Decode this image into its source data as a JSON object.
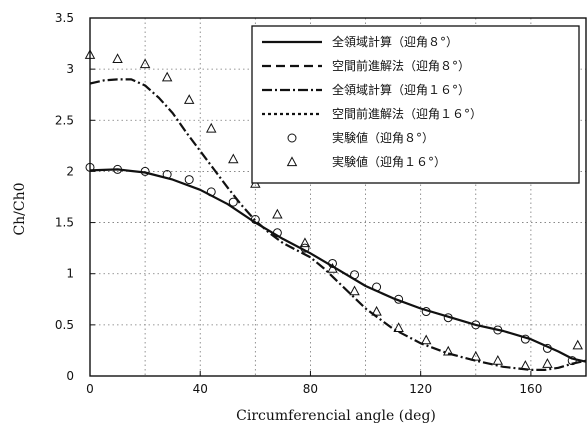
{
  "chart_data": {
    "type": "line",
    "xlabel": "Circumferencial angle (deg)",
    "ylabel": "Ch/Ch0",
    "xlim": [
      0,
      180
    ],
    "ylim": [
      0,
      3.5
    ],
    "xticks": [
      "0",
      "40",
      "80",
      "120",
      "160"
    ],
    "xtick_values": [
      0,
      40,
      80,
      120,
      160
    ],
    "yticks": [
      "0",
      "0.5",
      "1",
      "1.5",
      "2",
      "2.5",
      "3",
      "3.5"
    ],
    "ytick_values": [
      0,
      0.5,
      1,
      1.5,
      2,
      2.5,
      3,
      3.5
    ],
    "grid": true,
    "legend_position": "top-right",
    "series": [
      {
        "name": "全領域計算（迎角８°）",
        "style": "solid",
        "x": [
          0,
          10,
          20,
          30,
          40,
          50,
          60,
          70,
          80,
          90,
          100,
          110,
          120,
          130,
          140,
          150,
          160,
          170,
          175,
          180
        ],
        "y": [
          2.01,
          2.02,
          1.99,
          1.92,
          1.82,
          1.68,
          1.5,
          1.34,
          1.2,
          1.04,
          0.88,
          0.76,
          0.66,
          0.58,
          0.5,
          0.44,
          0.36,
          0.24,
          0.17,
          0.14
        ]
      },
      {
        "name": "空間前進解法（迎角８°）",
        "style": "dashed",
        "x": [],
        "y": []
      },
      {
        "name": "全領域計算（迎角１６°）",
        "style": "dashdot",
        "x": [
          0,
          5,
          10,
          15,
          20,
          25,
          30,
          35,
          40,
          45,
          50,
          55,
          60,
          65,
          70,
          75,
          80,
          85,
          90,
          95,
          100,
          110,
          120,
          130,
          140,
          150,
          160,
          165,
          170,
          175,
          180
        ],
        "y": [
          2.86,
          2.89,
          2.9,
          2.9,
          2.84,
          2.72,
          2.57,
          2.38,
          2.2,
          2.02,
          1.84,
          1.67,
          1.52,
          1.4,
          1.3,
          1.23,
          1.16,
          1.05,
          0.92,
          0.79,
          0.66,
          0.46,
          0.32,
          0.22,
          0.15,
          0.09,
          0.06,
          0.06,
          0.08,
          0.12,
          0.15
        ]
      },
      {
        "name": "空間前進解法（迎角１６°）",
        "style": "dotted",
        "x": [],
        "y": []
      },
      {
        "name": "実験値（迎角８°）",
        "style": "circle",
        "x": [
          0,
          10,
          20,
          28,
          36,
          44,
          52,
          60,
          68,
          78,
          88,
          96,
          104,
          112,
          122,
          130,
          140,
          148,
          158,
          166,
          175
        ],
        "y": [
          2.04,
          2.02,
          2.0,
          1.97,
          1.92,
          1.8,
          1.7,
          1.53,
          1.4,
          1.25,
          1.1,
          0.99,
          0.87,
          0.75,
          0.63,
          0.57,
          0.5,
          0.45,
          0.36,
          0.27,
          0.15
        ]
      },
      {
        "name": "実験値（迎角１６°）",
        "style": "triangle",
        "x": [
          0,
          10,
          20,
          28,
          36,
          44,
          52,
          60,
          68,
          78,
          88,
          96,
          104,
          112,
          122,
          130,
          140,
          148,
          158,
          166,
          177
        ],
        "y": [
          3.14,
          3.1,
          3.05,
          2.92,
          2.7,
          2.42,
          2.12,
          1.88,
          1.58,
          1.3,
          1.05,
          0.83,
          0.63,
          0.47,
          0.35,
          0.24,
          0.19,
          0.15,
          0.1,
          0.12,
          0.3
        ]
      }
    ]
  }
}
